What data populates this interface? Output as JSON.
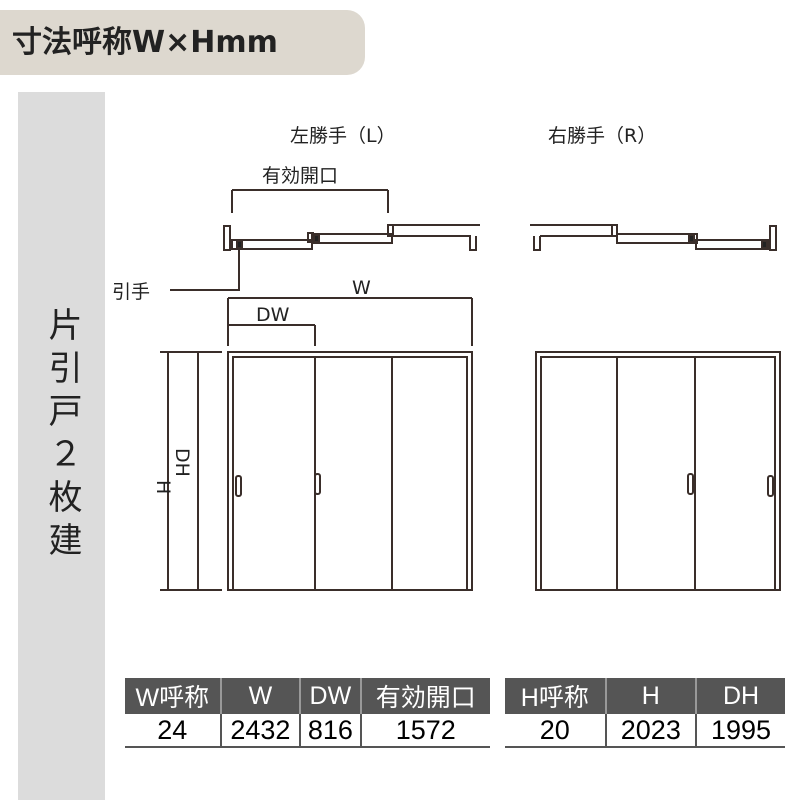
{
  "title": "寸法呼称W×Hmm",
  "sidebar_label": "片引戸２枚建",
  "diagram": {
    "left_label": "左勝手（L）",
    "right_label": "右勝手（R）",
    "effective_opening_label": "有効開口",
    "handle_label": "引手",
    "w_label": "W",
    "dw_label": "DW",
    "h_label": "H",
    "dh_label": "DH"
  },
  "width_table": {
    "headers": [
      "W呼称",
      "W",
      "DW",
      "有効開口"
    ],
    "values": [
      "24",
      "2432",
      "816",
      "1572"
    ]
  },
  "height_table": {
    "headers": [
      "H呼称",
      "H",
      "DH"
    ],
    "values": [
      "20",
      "2023",
      "1995"
    ]
  },
  "colors": {
    "title_bg": "#ddd8cf",
    "sidebar_bg": "#dcdcdc",
    "table_header_bg": "#555555",
    "line": "#3a2e2a"
  }
}
